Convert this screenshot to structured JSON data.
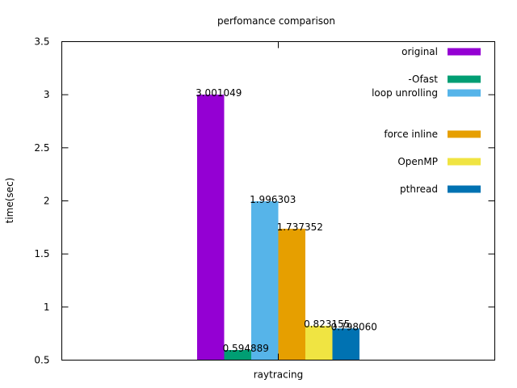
{
  "chart_data": {
    "type": "bar",
    "title": "perfomance comparison",
    "xlabel": "",
    "ylabel": "time(sec)",
    "categories": [
      "raytracing"
    ],
    "ylim": [
      0.5,
      3.5
    ],
    "yticks": [
      "0.5",
      "1",
      "1.5",
      "2",
      "2.5",
      "3",
      "3.5"
    ],
    "legend_position": "top-right",
    "series": [
      {
        "name": "original",
        "value": 3.001049,
        "label": "3.001049",
        "color": "#9400d3"
      },
      {
        "name": "-Ofast",
        "value": 0.594889,
        "label": "0.594889",
        "color": "#009e73"
      },
      {
        "name": "loop unrolling",
        "value": 1.996303,
        "label": "1.996303",
        "color": "#56b4e9"
      },
      {
        "name": "force inline",
        "value": 1.737352,
        "label": "1.737352",
        "color": "#e69f00"
      },
      {
        "name": "OpenMP",
        "value": 0.823155,
        "label": "0.823155",
        "color": "#f0e442"
      },
      {
        "name": "pthread",
        "value": 0.79806,
        "label": "0.798060",
        "color": "#0072b2"
      }
    ]
  }
}
